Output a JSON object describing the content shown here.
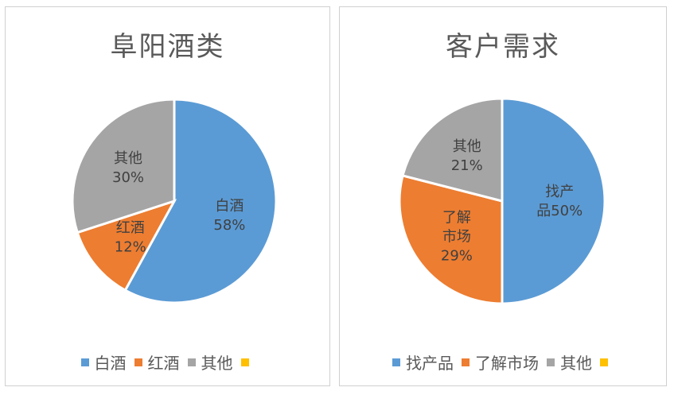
{
  "chart_data": [
    {
      "type": "pie",
      "title": "阜阳酒类",
      "slices": [
        {
          "name": "白酒",
          "value": 58,
          "label": "58%",
          "color": "#5B9BD5"
        },
        {
          "name": "红酒",
          "value": 12,
          "label": "12%",
          "color": "#ED7D31"
        },
        {
          "name": "其他",
          "value": 30,
          "label": "30%",
          "color": "#A5A5A5"
        }
      ],
      "legend": [
        {
          "name": "白酒",
          "color": "#5B9BD5"
        },
        {
          "name": "红酒",
          "color": "#ED7D31"
        },
        {
          "name": "其他",
          "color": "#A5A5A5"
        },
        {
          "name": "",
          "color": "#FFC000"
        }
      ],
      "legend_position": "bottom"
    },
    {
      "type": "pie",
      "title": "客户需求",
      "slices": [
        {
          "name": "找产品",
          "value": 50,
          "label": "50%",
          "color": "#5B9BD5"
        },
        {
          "name": "了解市场",
          "value": 29,
          "label": "29%",
          "color": "#ED7D31"
        },
        {
          "name": "其他",
          "value": 21,
          "label": "21%",
          "color": "#A5A5A5"
        }
      ],
      "legend": [
        {
          "name": "找产品",
          "color": "#5B9BD5"
        },
        {
          "name": "了解市场",
          "color": "#ED7D31"
        },
        {
          "name": "其他",
          "color": "#A5A5A5"
        },
        {
          "name": "",
          "color": "#FFC000"
        }
      ],
      "legend_position": "bottom"
    }
  ]
}
